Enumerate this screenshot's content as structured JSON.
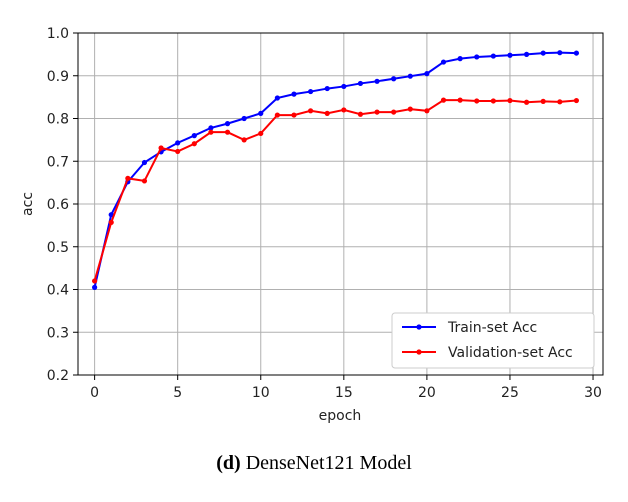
{
  "chart_data": {
    "type": "line",
    "xlabel": "epoch",
    "ylabel": "acc",
    "xlim": [
      -1,
      30.6
    ],
    "ylim": [
      0.2,
      1.0
    ],
    "xticks": [
      0,
      5,
      10,
      15,
      20,
      25,
      30
    ],
    "yticks": [
      0.2,
      0.3,
      0.4,
      0.5,
      0.6,
      0.7,
      0.8,
      0.9,
      1.0
    ],
    "grid": true,
    "legend_position": "lower-right",
    "x": [
      0,
      1,
      2,
      3,
      4,
      5,
      6,
      7,
      8,
      9,
      10,
      11,
      12,
      13,
      14,
      15,
      16,
      17,
      18,
      19,
      20,
      21,
      22,
      23,
      24,
      25,
      26,
      27,
      28,
      29
    ],
    "series": [
      {
        "name": "Train-set Acc",
        "color": "#0000ff",
        "values": [
          0.405,
          0.575,
          0.652,
          0.697,
          0.722,
          0.743,
          0.76,
          0.778,
          0.788,
          0.8,
          0.812,
          0.848,
          0.857,
          0.863,
          0.87,
          0.875,
          0.882,
          0.887,
          0.893,
          0.899,
          0.905,
          0.932,
          0.94,
          0.944,
          0.946,
          0.948,
          0.95,
          0.953,
          0.954,
          0.953
        ]
      },
      {
        "name": "Validation-set Acc",
        "color": "#ff0000",
        "values": [
          0.42,
          0.557,
          0.66,
          0.654,
          0.731,
          0.723,
          0.741,
          0.768,
          0.768,
          0.75,
          0.765,
          0.808,
          0.808,
          0.818,
          0.812,
          0.82,
          0.81,
          0.815,
          0.815,
          0.822,
          0.818,
          0.843,
          0.843,
          0.841,
          0.841,
          0.842,
          0.838,
          0.84,
          0.839,
          0.842
        ]
      }
    ]
  },
  "caption": {
    "label": "(d)",
    "text": " DenseNet121 Model"
  }
}
